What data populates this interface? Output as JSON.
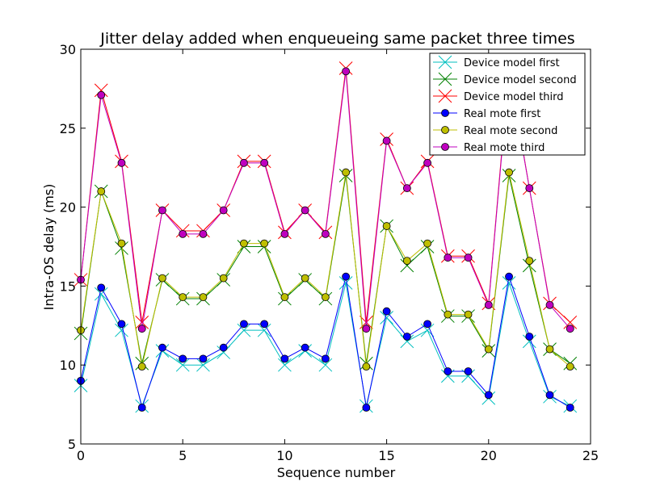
{
  "chart_data": {
    "type": "line",
    "title": "Jitter delay added when enqueueing same packet three times",
    "xlabel": "Sequence number",
    "ylabel": "Intra-OS delay (ms)",
    "xlim": [
      0,
      25
    ],
    "ylim": [
      5,
      30
    ],
    "xticks": [
      "0",
      "5",
      "10",
      "15",
      "20",
      "25"
    ],
    "yticks": [
      "5",
      "10",
      "15",
      "20",
      "25",
      "30"
    ],
    "grid": false,
    "legend_position": "top-right",
    "x": [
      0,
      1,
      2,
      3,
      4,
      5,
      6,
      7,
      8,
      9,
      10,
      11,
      12,
      13,
      14,
      15,
      16,
      17,
      18,
      19,
      20,
      21,
      22,
      23,
      24
    ],
    "series": [
      {
        "name": "Device model first",
        "color": "#00bfbf",
        "marker": "x",
        "values": [
          8.7,
          14.5,
          12.2,
          7.4,
          10.9,
          10.0,
          10.0,
          10.8,
          12.2,
          12.2,
          10.0,
          10.9,
          10.0,
          15.2,
          7.4,
          13.0,
          11.5,
          12.2,
          9.3,
          9.3,
          7.9,
          15.2,
          11.5,
          8.0,
          7.4
        ]
      },
      {
        "name": "Device model second",
        "color": "#008000",
        "marker": "x",
        "values": [
          12.0,
          21.0,
          17.4,
          10.1,
          15.4,
          14.2,
          14.2,
          15.4,
          17.5,
          17.5,
          14.2,
          15.4,
          14.2,
          22.0,
          10.1,
          18.8,
          16.3,
          17.5,
          13.1,
          13.1,
          10.9,
          22.0,
          16.3,
          11.0,
          10.1
        ]
      },
      {
        "name": "Device model third",
        "color": "#ff0000",
        "marker": "x",
        "values": [
          15.4,
          27.4,
          22.9,
          12.7,
          19.8,
          18.5,
          18.5,
          19.8,
          22.9,
          22.9,
          18.4,
          19.8,
          18.4,
          28.8,
          12.7,
          24.3,
          21.2,
          22.9,
          16.9,
          16.9,
          13.9,
          28.8,
          21.2,
          13.9,
          12.7
        ]
      },
      {
        "name": "Real mote first",
        "color": "#0000ff",
        "marker": "o",
        "values": [
          9.0,
          14.9,
          12.6,
          7.3,
          11.1,
          10.4,
          10.4,
          11.1,
          12.6,
          12.6,
          10.4,
          11.1,
          10.4,
          15.6,
          7.3,
          13.4,
          11.8,
          12.6,
          9.6,
          9.6,
          8.1,
          15.6,
          11.8,
          8.1,
          7.3
        ]
      },
      {
        "name": "Real mote second",
        "color": "#bfbf00",
        "marker": "o",
        "values": [
          12.2,
          21.0,
          17.7,
          9.9,
          15.5,
          14.3,
          14.3,
          15.5,
          17.7,
          17.7,
          14.3,
          15.5,
          14.3,
          22.2,
          9.9,
          18.8,
          16.6,
          17.7,
          13.2,
          13.2,
          11.0,
          22.2,
          16.6,
          11.0,
          9.9
        ]
      },
      {
        "name": "Real mote third",
        "color": "#bf00bf",
        "marker": "o",
        "values": [
          15.4,
          27.1,
          22.8,
          12.3,
          19.8,
          18.3,
          18.3,
          19.8,
          22.8,
          22.8,
          18.3,
          19.8,
          18.3,
          28.6,
          12.3,
          24.2,
          21.2,
          22.8,
          16.8,
          16.8,
          13.8,
          28.6,
          21.2,
          13.8,
          12.3
        ]
      }
    ]
  }
}
